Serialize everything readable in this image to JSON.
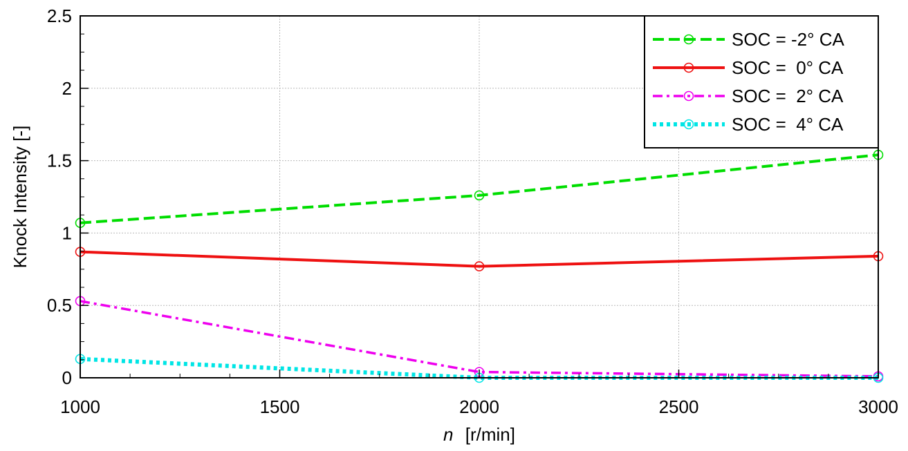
{
  "chart_data": {
    "type": "line",
    "xlabel": {
      "var": "n",
      "unit": "[r/min]"
    },
    "ylabel": "Knock Intensity [-]",
    "xlim": [
      1000,
      3000
    ],
    "ylim": [
      0,
      2.5
    ],
    "xticks": [
      "1000",
      "1500",
      "2000",
      "2500",
      "3000"
    ],
    "yticks": [
      "0",
      "0.5",
      "1",
      "1.5",
      "2",
      "2.5"
    ],
    "grid": true,
    "legend_position": "top-right",
    "x": [
      1000,
      2000,
      3000
    ],
    "series": [
      {
        "name": "SOC = -2° CA",
        "color": "#00dd00",
        "dash": "dashed",
        "marker": "circle",
        "values": [
          1.07,
          1.26,
          1.54
        ]
      },
      {
        "name": "SOC =  0° CA",
        "color": "#ee1111",
        "dash": "solid",
        "marker": "circle",
        "values": [
          0.87,
          0.77,
          0.84
        ]
      },
      {
        "name": "SOC =  2° CA",
        "color": "#ee00ee",
        "dash": "dashdot",
        "marker": "circle",
        "values": [
          0.53,
          0.04,
          0.01
        ]
      },
      {
        "name": "SOC =  4° CA",
        "color": "#00e5e5",
        "dash": "dotted",
        "marker": "circle",
        "values": [
          0.13,
          0.0,
          0.0
        ]
      }
    ]
  }
}
